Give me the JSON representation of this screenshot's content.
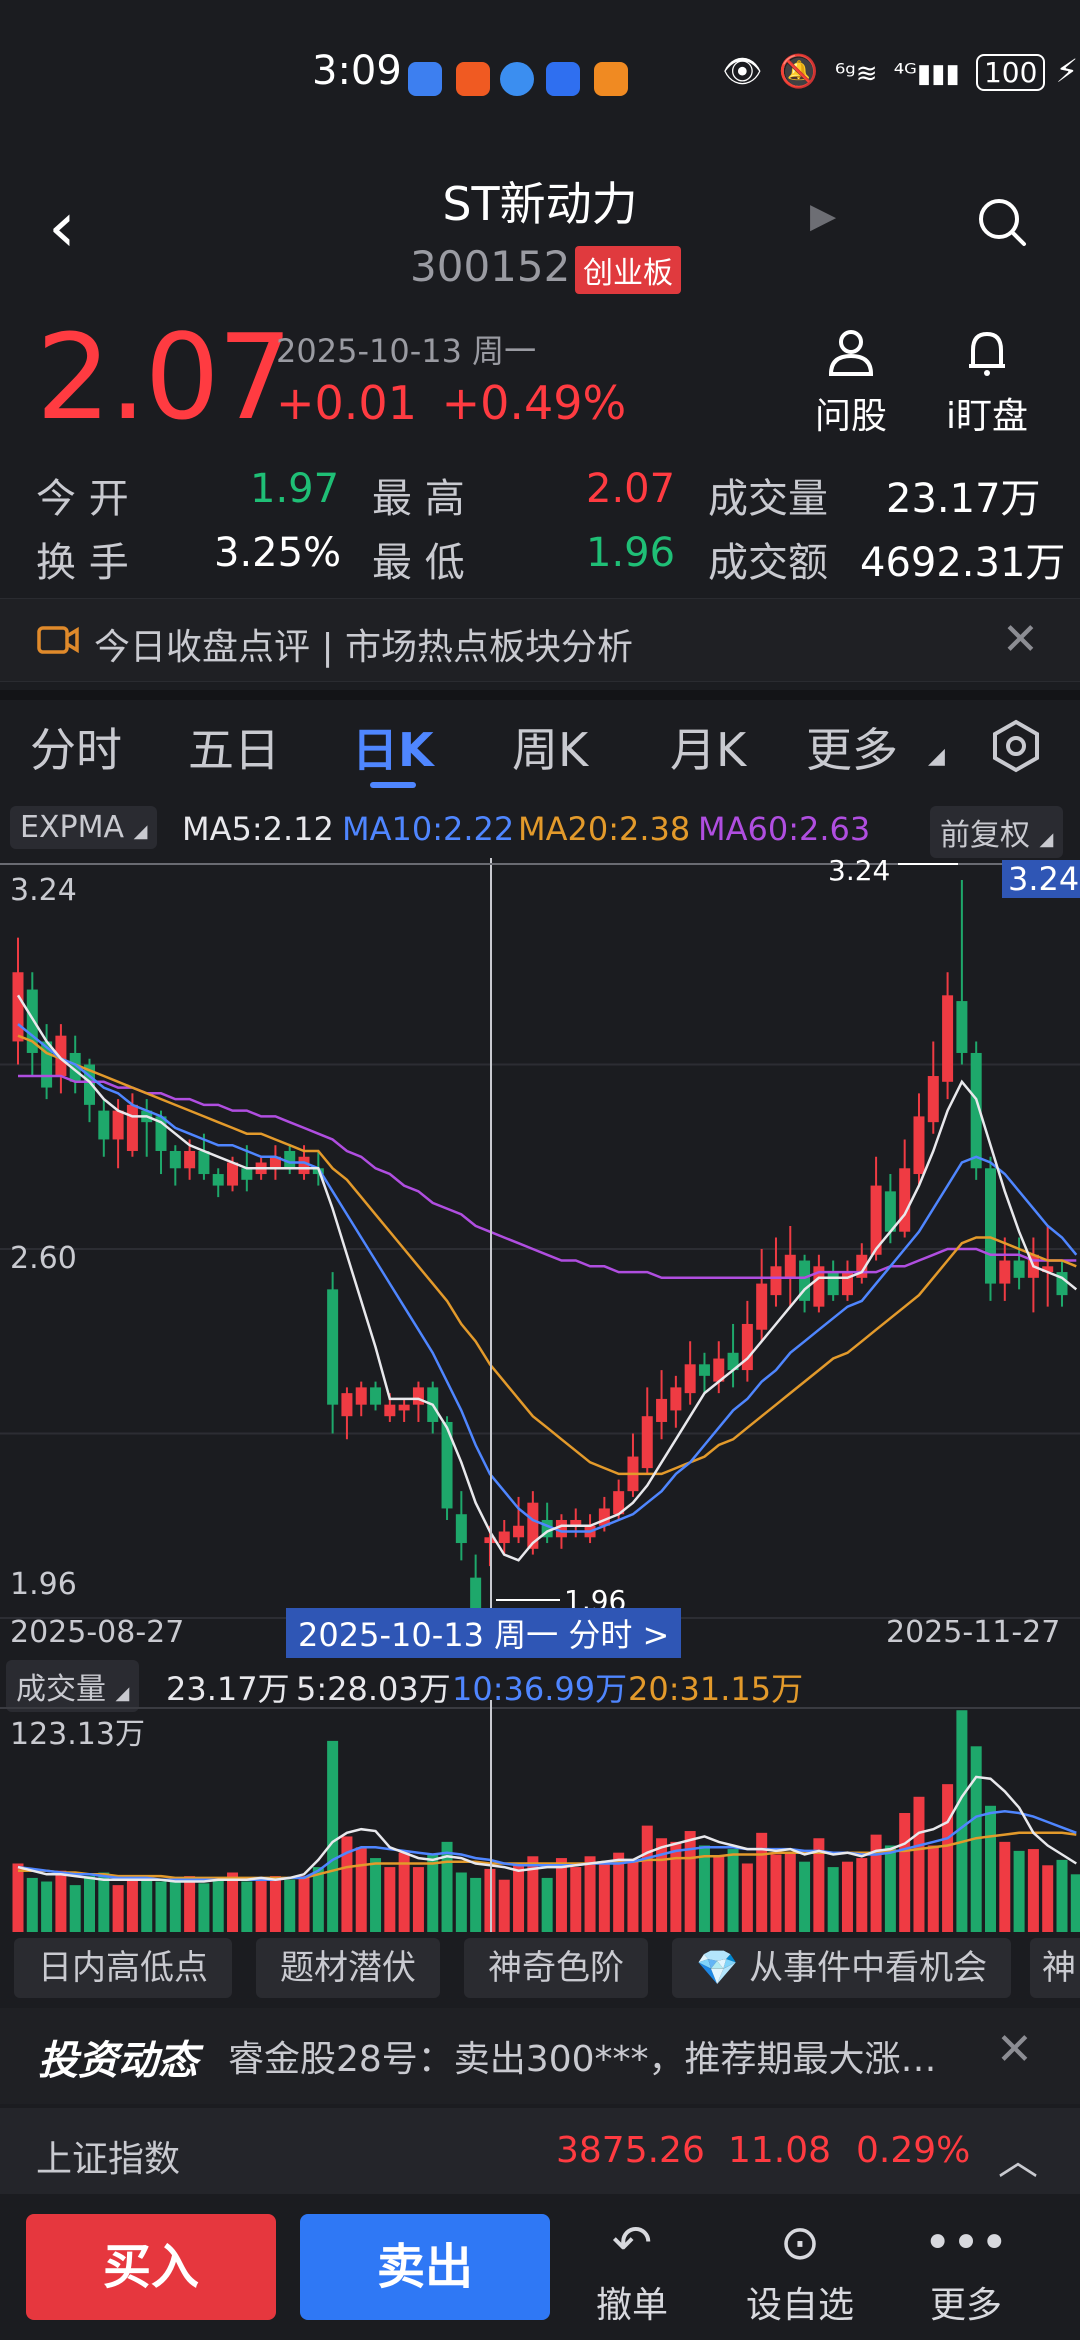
{
  "status_bar": {
    "time": "3:09",
    "battery": "100"
  },
  "header": {
    "title": "ST新动力",
    "code": "300152",
    "board": "创业板"
  },
  "quote": {
    "price": "2.07",
    "date": "2025-10-13 周一",
    "change": "+0.01",
    "change_pct": "+0.49%",
    "ask_label": "问股",
    "watch_label": "i盯盘",
    "stats": {
      "open_label": "今 开",
      "open": "1.97",
      "high_label": "最 高",
      "high": "2.07",
      "vol_label": "成交量",
      "vol": "23.17万",
      "turnover_label": "换 手",
      "turnover": "3.25%",
      "low_label": "最 低",
      "low": "1.96",
      "amount_label": "成交额",
      "amount": "4692.31万"
    }
  },
  "banner": {
    "text": "今日收盘点评 | 市场热点板块分析"
  },
  "tabs": [
    "分时",
    "五日",
    "日K",
    "周K",
    "月K",
    "更多"
  ],
  "ma_bar": {
    "indicator": "EXPMA",
    "ma5": "MA5:2.12",
    "ma10": "MA10:2.22",
    "ma20": "MA20:2.38",
    "ma60": "MA60:2.63",
    "adjust": "前复权",
    "colors": {
      "ma5": "#e8e8ec",
      "ma10": "#4f86ff",
      "ma20": "#e39a2b",
      "ma60": "#b04ee0"
    }
  },
  "chart_data": {
    "type": "candlestick",
    "y_axis_labels": [
      "3.24",
      "2.60",
      "1.96"
    ],
    "ylim": [
      1.96,
      3.24
    ],
    "x_start": "2025-08-27",
    "x_end": "2025-11-27",
    "selected_label": "2025-10-13 周一 分时 >",
    "high_marker": "3.24",
    "high_tag": "3.24",
    "low_marker": "1.96",
    "candles": [
      {
        "o": 2.96,
        "c": 3.08,
        "h": 3.14,
        "l": 2.92
      },
      {
        "o": 3.05,
        "c": 2.94,
        "h": 3.08,
        "l": 2.9
      },
      {
        "o": 2.96,
        "c": 2.88,
        "h": 2.99,
        "l": 2.86
      },
      {
        "o": 2.9,
        "c": 2.97,
        "h": 2.99,
        "l": 2.87
      },
      {
        "o": 2.94,
        "c": 2.89,
        "h": 2.97,
        "l": 2.87
      },
      {
        "o": 2.92,
        "c": 2.85,
        "h": 2.93,
        "l": 2.82
      },
      {
        "o": 2.84,
        "c": 2.79,
        "h": 2.86,
        "l": 2.76
      },
      {
        "o": 2.79,
        "c": 2.84,
        "h": 2.86,
        "l": 2.74
      },
      {
        "o": 2.77,
        "c": 2.85,
        "h": 2.87,
        "l": 2.76
      },
      {
        "o": 2.84,
        "c": 2.82,
        "h": 2.86,
        "l": 2.76
      },
      {
        "o": 2.83,
        "c": 2.77,
        "h": 2.84,
        "l": 2.73
      },
      {
        "o": 2.77,
        "c": 2.74,
        "h": 2.78,
        "l": 2.71
      },
      {
        "o": 2.74,
        "c": 2.77,
        "h": 2.79,
        "l": 2.72
      },
      {
        "o": 2.77,
        "c": 2.73,
        "h": 2.8,
        "l": 2.72
      },
      {
        "o": 2.73,
        "c": 2.71,
        "h": 2.74,
        "l": 2.69
      },
      {
        "o": 2.71,
        "c": 2.75,
        "h": 2.76,
        "l": 2.7
      },
      {
        "o": 2.74,
        "c": 2.72,
        "h": 2.78,
        "l": 2.7
      },
      {
        "o": 2.73,
        "c": 2.75,
        "h": 2.76,
        "l": 2.72
      },
      {
        "o": 2.74,
        "c": 2.76,
        "h": 2.78,
        "l": 2.72
      },
      {
        "o": 2.77,
        "c": 2.74,
        "h": 2.78,
        "l": 2.73
      },
      {
        "o": 2.73,
        "c": 2.76,
        "h": 2.78,
        "l": 2.72
      },
      {
        "o": 2.74,
        "c": 2.73,
        "h": 2.77,
        "l": 2.71
      },
      {
        "o": 2.53,
        "c": 2.33,
        "h": 2.56,
        "l": 2.28
      },
      {
        "o": 2.31,
        "c": 2.35,
        "h": 2.36,
        "l": 2.27
      },
      {
        "o": 2.33,
        "c": 2.36,
        "h": 2.37,
        "l": 2.31
      },
      {
        "o": 2.36,
        "c": 2.33,
        "h": 2.37,
        "l": 2.32
      },
      {
        "o": 2.31,
        "c": 2.33,
        "h": 2.35,
        "l": 2.3
      },
      {
        "o": 2.32,
        "c": 2.33,
        "h": 2.34,
        "l": 2.3
      },
      {
        "o": 2.33,
        "c": 2.36,
        "h": 2.37,
        "l": 2.3
      },
      {
        "o": 2.36,
        "c": 2.3,
        "h": 2.37,
        "l": 2.28
      },
      {
        "o": 2.3,
        "c": 2.15,
        "h": 2.31,
        "l": 2.13
      },
      {
        "o": 2.14,
        "c": 2.09,
        "h": 2.18,
        "l": 2.06
      },
      {
        "o": 2.03,
        "c": 1.97,
        "h": 2.07,
        "l": 1.96
      },
      {
        "o": 2.09,
        "c": 2.1,
        "h": 2.12,
        "l": 2.05
      },
      {
        "o": 2.09,
        "c": 2.11,
        "h": 2.13,
        "l": 2.07
      },
      {
        "o": 2.1,
        "c": 2.12,
        "h": 2.17,
        "l": 2.09
      },
      {
        "o": 2.08,
        "c": 2.16,
        "h": 2.18,
        "l": 2.07
      },
      {
        "o": 2.13,
        "c": 2.1,
        "h": 2.16,
        "l": 2.09
      },
      {
        "o": 2.1,
        "c": 2.13,
        "h": 2.14,
        "l": 2.08
      },
      {
        "o": 2.12,
        "c": 2.13,
        "h": 2.15,
        "l": 2.1
      },
      {
        "o": 2.1,
        "c": 2.12,
        "h": 2.14,
        "l": 2.09
      },
      {
        "o": 2.12,
        "c": 2.15,
        "h": 2.17,
        "l": 2.11
      },
      {
        "o": 2.14,
        "c": 2.18,
        "h": 2.2,
        "l": 2.13
      },
      {
        "o": 2.18,
        "c": 2.24,
        "h": 2.28,
        "l": 2.17
      },
      {
        "o": 2.22,
        "c": 2.31,
        "h": 2.36,
        "l": 2.21
      },
      {
        "o": 2.3,
        "c": 2.34,
        "h": 2.39,
        "l": 2.27
      },
      {
        "o": 2.32,
        "c": 2.36,
        "h": 2.38,
        "l": 2.29
      },
      {
        "o": 2.35,
        "c": 2.4,
        "h": 2.44,
        "l": 2.33
      },
      {
        "o": 2.4,
        "c": 2.38,
        "h": 2.42,
        "l": 2.35
      },
      {
        "o": 2.37,
        "c": 2.41,
        "h": 2.44,
        "l": 2.35
      },
      {
        "o": 2.42,
        "c": 2.39,
        "h": 2.47,
        "l": 2.36
      },
      {
        "o": 2.39,
        "c": 2.47,
        "h": 2.51,
        "l": 2.37
      },
      {
        "o": 2.46,
        "c": 2.54,
        "h": 2.6,
        "l": 2.44
      },
      {
        "o": 2.52,
        "c": 2.57,
        "h": 2.62,
        "l": 2.5
      },
      {
        "o": 2.55,
        "c": 2.59,
        "h": 2.64,
        "l": 2.5
      },
      {
        "o": 2.58,
        "c": 2.51,
        "h": 2.59,
        "l": 2.49
      },
      {
        "o": 2.5,
        "c": 2.57,
        "h": 2.59,
        "l": 2.49
      },
      {
        "o": 2.56,
        "c": 2.52,
        "h": 2.58,
        "l": 2.51
      },
      {
        "o": 2.52,
        "c": 2.56,
        "h": 2.58,
        "l": 2.51
      },
      {
        "o": 2.55,
        "c": 2.59,
        "h": 2.61,
        "l": 2.54
      },
      {
        "o": 2.59,
        "c": 2.71,
        "h": 2.76,
        "l": 2.58
      },
      {
        "o": 2.7,
        "c": 2.63,
        "h": 2.73,
        "l": 2.61
      },
      {
        "o": 2.63,
        "c": 2.74,
        "h": 2.79,
        "l": 2.62
      },
      {
        "o": 2.73,
        "c": 2.83,
        "h": 2.87,
        "l": 2.71
      },
      {
        "o": 2.82,
        "c": 2.9,
        "h": 2.96,
        "l": 2.8
      },
      {
        "o": 2.89,
        "c": 3.04,
        "h": 3.08,
        "l": 2.86
      },
      {
        "o": 3.03,
        "c": 2.94,
        "h": 3.24,
        "l": 2.92
      },
      {
        "o": 2.94,
        "c": 2.74,
        "h": 2.96,
        "l": 2.72
      },
      {
        "o": 2.74,
        "c": 2.54,
        "h": 2.76,
        "l": 2.51
      },
      {
        "o": 2.54,
        "c": 2.58,
        "h": 2.62,
        "l": 2.51
      },
      {
        "o": 2.58,
        "c": 2.55,
        "h": 2.62,
        "l": 2.53
      },
      {
        "o": 2.55,
        "c": 2.59,
        "h": 2.62,
        "l": 2.49
      },
      {
        "o": 2.56,
        "c": 2.57,
        "h": 2.64,
        "l": 2.5
      },
      {
        "o": 2.56,
        "c": 2.52,
        "h": 2.58,
        "l": 2.5
      }
    ],
    "ma_lines": {
      "ma5": [
        3.04,
        3.0,
        2.96,
        2.93,
        2.91,
        2.89,
        2.86,
        2.84,
        2.83,
        2.83,
        2.82,
        2.8,
        2.78,
        2.77,
        2.76,
        2.75,
        2.74,
        2.74,
        2.74,
        2.74,
        2.74,
        2.74,
        2.67,
        2.59,
        2.51,
        2.43,
        2.34,
        2.34,
        2.34,
        2.33,
        2.29,
        2.23,
        2.16,
        2.11,
        2.07,
        2.06,
        2.09,
        2.11,
        2.12,
        2.12,
        2.12,
        2.13,
        2.14,
        2.16,
        2.19,
        2.23,
        2.27,
        2.31,
        2.35,
        2.37,
        2.39,
        2.41,
        2.44,
        2.47,
        2.5,
        2.53,
        2.55,
        2.55,
        2.55,
        2.56,
        2.6,
        2.63,
        2.66,
        2.71,
        2.77,
        2.84,
        2.89,
        2.86,
        2.78,
        2.7,
        2.63,
        2.57,
        2.56,
        2.55,
        2.53
      ],
      "ma10": [
        2.99,
        2.97,
        2.95,
        2.93,
        2.92,
        2.9,
        2.88,
        2.87,
        2.85,
        2.84,
        2.83,
        2.81,
        2.8,
        2.79,
        2.78,
        2.78,
        2.77,
        2.76,
        2.76,
        2.75,
        2.75,
        2.74,
        2.7,
        2.66,
        2.62,
        2.58,
        2.54,
        2.5,
        2.46,
        2.42,
        2.37,
        2.32,
        2.26,
        2.21,
        2.18,
        2.15,
        2.13,
        2.12,
        2.11,
        2.11,
        2.11,
        2.12,
        2.13,
        2.14,
        2.16,
        2.18,
        2.21,
        2.23,
        2.26,
        2.29,
        2.32,
        2.34,
        2.37,
        2.39,
        2.42,
        2.44,
        2.46,
        2.48,
        2.5,
        2.51,
        2.54,
        2.57,
        2.6,
        2.63,
        2.67,
        2.71,
        2.75,
        2.76,
        2.75,
        2.73,
        2.7,
        2.67,
        2.64,
        2.62,
        2.59
      ],
      "ma20": [
        2.97,
        2.96,
        2.94,
        2.93,
        2.92,
        2.91,
        2.9,
        2.89,
        2.88,
        2.87,
        2.86,
        2.85,
        2.84,
        2.83,
        2.82,
        2.81,
        2.8,
        2.8,
        2.79,
        2.78,
        2.77,
        2.77,
        2.74,
        2.72,
        2.69,
        2.66,
        2.63,
        2.6,
        2.57,
        2.54,
        2.51,
        2.47,
        2.44,
        2.4,
        2.37,
        2.34,
        2.31,
        2.29,
        2.27,
        2.25,
        2.23,
        2.22,
        2.21,
        2.21,
        2.21,
        2.21,
        2.22,
        2.23,
        2.24,
        2.26,
        2.27,
        2.29,
        2.31,
        2.33,
        2.35,
        2.37,
        2.39,
        2.41,
        2.42,
        2.44,
        2.46,
        2.48,
        2.5,
        2.52,
        2.55,
        2.58,
        2.61,
        2.62,
        2.62,
        2.61,
        2.6,
        2.59,
        2.58,
        2.58,
        2.57
      ],
      "ma60": [
        2.9,
        2.9,
        2.9,
        2.9,
        2.89,
        2.89,
        2.89,
        2.88,
        2.88,
        2.87,
        2.87,
        2.86,
        2.86,
        2.85,
        2.85,
        2.84,
        2.84,
        2.83,
        2.83,
        2.82,
        2.81,
        2.8,
        2.79,
        2.77,
        2.76,
        2.74,
        2.73,
        2.71,
        2.7,
        2.68,
        2.67,
        2.66,
        2.64,
        2.63,
        2.62,
        2.61,
        2.6,
        2.59,
        2.58,
        2.58,
        2.57,
        2.57,
        2.56,
        2.56,
        2.56,
        2.55,
        2.55,
        2.55,
        2.55,
        2.55,
        2.55,
        2.55,
        2.55,
        2.55,
        2.55,
        2.55,
        2.56,
        2.56,
        2.56,
        2.56,
        2.56,
        2.57,
        2.57,
        2.58,
        2.59,
        2.6,
        2.6,
        2.6,
        2.59,
        2.59,
        2.59,
        2.58,
        2.58,
        2.58,
        2.58
      ]
    }
  },
  "volume": {
    "label": "成交量",
    "value": "23.17万",
    "ma5": "5:28.03万",
    "ma10": "10:36.99万",
    "ma20": "20:31.15万",
    "max_label": "123.13万",
    "max": 123.13,
    "bars": [
      38,
      30,
      28,
      34,
      26,
      31,
      33,
      26,
      30,
      29,
      28,
      28,
      31,
      27,
      30,
      33,
      28,
      30,
      31,
      29,
      31,
      36,
      106,
      53,
      47,
      41,
      36,
      44,
      36,
      43,
      50,
      33,
      30,
      35,
      29,
      38,
      42,
      30,
      41,
      36,
      42,
      39,
      44,
      40,
      59,
      52,
      50,
      56,
      48,
      42,
      46,
      38,
      55,
      43,
      44,
      39,
      52,
      36,
      39,
      41,
      54,
      48,
      66,
      75,
      48,
      82,
      123,
      103,
      70,
      50,
      45,
      46,
      37,
      40,
      32
    ],
    "ma5_line": [
      36,
      34,
      32,
      32,
      31,
      30,
      29,
      29,
      29,
      29,
      29,
      28,
      28,
      28,
      29,
      29,
      29,
      30,
      29,
      30,
      32,
      40,
      50,
      55,
      57,
      56,
      47,
      44,
      41,
      40,
      42,
      41,
      38,
      37,
      36,
      34,
      35,
      36,
      36,
      37,
      38,
      39,
      40,
      40,
      44,
      47,
      49,
      51,
      53,
      50,
      48,
      46,
      46,
      45,
      46,
      43,
      45,
      43,
      44,
      42,
      45,
      46,
      49,
      55,
      57,
      61,
      75,
      86,
      85,
      78,
      69,
      55,
      48,
      43,
      38
    ],
    "ma10_line": [
      36,
      35,
      34,
      33,
      32,
      32,
      31,
      30,
      30,
      30,
      29,
      29,
      29,
      29,
      29,
      29,
      29,
      29,
      29,
      30,
      30,
      34,
      40,
      44,
      47,
      47,
      46,
      45,
      44,
      43,
      44,
      43,
      41,
      40,
      38,
      37,
      37,
      37,
      37,
      37,
      38,
      38,
      38,
      39,
      41,
      43,
      45,
      46,
      47,
      47,
      47,
      46,
      46,
      46,
      46,
      45,
      45,
      44,
      44,
      43,
      43,
      44,
      46,
      48,
      50,
      52,
      58,
      64,
      66,
      67,
      66,
      64,
      61,
      58,
      55
    ],
    "ma20_line": [
      34,
      34,
      34,
      33,
      33,
      32,
      32,
      31,
      31,
      31,
      31,
      30,
      30,
      30,
      30,
      30,
      30,
      30,
      30,
      30,
      30,
      32,
      34,
      36,
      37,
      38,
      38,
      38,
      38,
      38,
      39,
      39,
      39,
      38,
      38,
      38,
      38,
      38,
      38,
      38,
      38,
      39,
      39,
      39,
      40,
      40,
      41,
      41,
      42,
      42,
      43,
      43,
      43,
      44,
      44,
      44,
      44,
      44,
      44,
      44,
      44,
      45,
      45,
      46,
      47,
      48,
      50,
      52,
      53,
      54,
      55,
      55,
      55,
      55,
      54
    ]
  },
  "feature_chips": [
    "日内高低点",
    "题材潜伏",
    "神奇色阶",
    "从事件中看机会",
    "神"
  ],
  "news": {
    "logo": "投资动态",
    "text": "睿金股28号：卖出300***，推荐期最大涨…"
  },
  "index": {
    "name": "上证指数",
    "value": "3875.26",
    "change": "11.08",
    "pct": "0.29%"
  },
  "bottom": {
    "buy": "买入",
    "sell": "卖出",
    "cancel": "撤单",
    "watchlist": "设自选",
    "more": "更多"
  }
}
